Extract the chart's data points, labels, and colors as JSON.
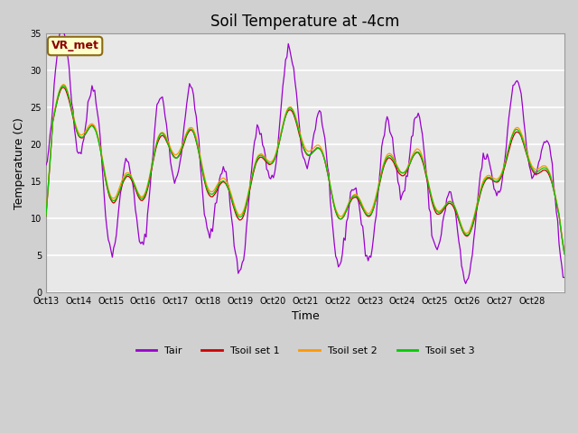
{
  "title": "Soil Temperature at -4cm",
  "xlabel": "Time",
  "ylabel": "Temperature (C)",
  "ylim": [
    0,
    35
  ],
  "yticks": [
    0,
    5,
    10,
    15,
    20,
    25,
    30,
    35
  ],
  "x_tick_labels": [
    "Oct 13",
    "Oct 14",
    "Oct 15",
    "Oct 16",
    "Oct 17",
    "Oct 18",
    "Oct 19",
    "Oct 20",
    "Oct 21",
    "Oct 22",
    "Oct 23",
    "Oct 24",
    "Oct 25",
    "Oct 26",
    "Oct 27",
    "Oct 28",
    ""
  ],
  "annotation_text": "VR_met",
  "annotation_box_color": "#FFFFCC",
  "annotation_text_color": "#8B0000",
  "annotation_edge_color": "#8B6914",
  "colors": {
    "Tair": "#9900CC",
    "Tsoil1": "#CC0000",
    "Tsoil2": "#FF9900",
    "Tsoil3": "#00CC00"
  },
  "legend_labels": [
    "Tair",
    "Tsoil set 1",
    "Tsoil set 2",
    "Tsoil set 3"
  ],
  "fig_bg_color": "#D0D0D0",
  "plot_bg_color": "#E8E8E8",
  "grid_color": "#FFFFFF",
  "title_fontsize": 12,
  "axis_fontsize": 9,
  "tick_fontsize": 7,
  "n_days": 16
}
